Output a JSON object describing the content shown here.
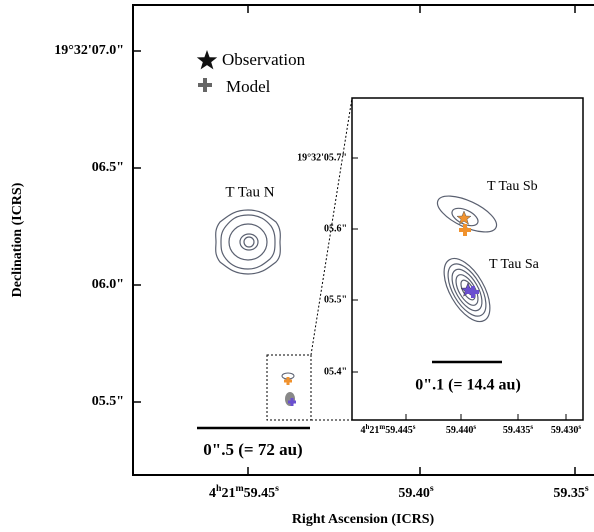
{
  "figure": {
    "x_axis_label": "Right Ascension (ICRS)",
    "y_axis_label": "Declination (ICRS)",
    "x_ticks": [
      [
        "4",
        "h",
        "21",
        "m",
        "59.45",
        "s"
      ],
      [
        "59.40",
        "s"
      ],
      [
        "59.35",
        "s"
      ]
    ],
    "y_ticks": [
      "19°32'07.0\"",
      "06.5\"",
      "06.0\"",
      "05.5\""
    ],
    "legend": [
      "Observation",
      "Model"
    ],
    "source_label": "T Tau N",
    "scale_bar": "0\".5 (= 72 au)",
    "inset": {
      "x_ticks": [
        [
          "4",
          "h",
          "21",
          "m",
          "59.445",
          "s"
        ],
        [
          "59.440",
          "s"
        ],
        [
          "59.435",
          "s"
        ],
        [
          "59.430",
          "s"
        ]
      ],
      "y_ticks": [
        "19°32'05.7\"",
        "05.6\"",
        "05.5\"",
        "05.4\""
      ],
      "labels": [
        "T Tau Sb",
        "T Tau Sa"
      ],
      "scale_bar": "0\".1 (= 14.4 au)"
    }
  }
}
